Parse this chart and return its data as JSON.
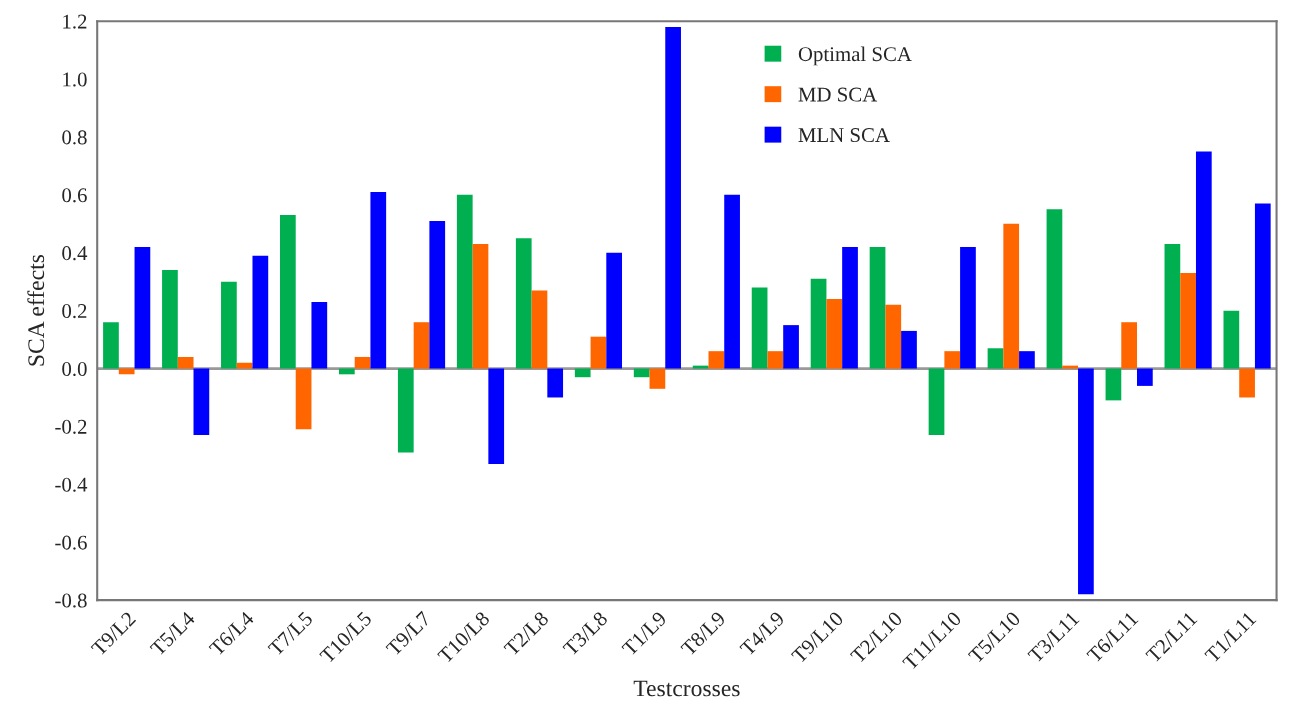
{
  "chart_data": {
    "type": "bar",
    "xlabel": "Testcrosses",
    "ylabel": "SCA effects",
    "categories": [
      "T9/L2",
      "T5/L4",
      "T6/L4",
      "T7/L5",
      "T10/L5",
      "T9/L7",
      "T10/L8",
      "T2/L8",
      "T3/L8",
      "T1/L9",
      "T8/L9",
      "T4/L9",
      "T9/L10",
      "T2/L10",
      "T11/L10",
      "T5/L10",
      "T3/L11",
      "T6/L11",
      "T2/L11",
      "T1/L11"
    ],
    "series": [
      {
        "name": "Optimal SCA",
        "color": "#00b050",
        "values": [
          0.16,
          0.34,
          0.3,
          0.53,
          -0.02,
          -0.29,
          0.6,
          0.45,
          -0.03,
          -0.03,
          0.01,
          0.28,
          0.31,
          0.42,
          -0.23,
          0.07,
          0.55,
          -0.11,
          0.43,
          0.2
        ]
      },
      {
        "name": "MD SCA",
        "color": "#ff6600",
        "values": [
          -0.02,
          0.04,
          0.02,
          -0.21,
          0.04,
          0.16,
          0.43,
          0.27,
          0.11,
          -0.07,
          0.06,
          0.06,
          0.24,
          0.22,
          0.06,
          0.5,
          0.01,
          0.16,
          0.33,
          -0.1
        ]
      },
      {
        "name": "MLN SCA",
        "color": "#0000ff",
        "values": [
          0.42,
          -0.23,
          0.39,
          0.23,
          0.61,
          0.51,
          -0.33,
          -0.1,
          0.4,
          1.18,
          0.6,
          0.15,
          0.42,
          0.13,
          0.42,
          0.06,
          -0.78,
          -0.06,
          0.75,
          0.57
        ]
      }
    ],
    "ylim": [
      -0.8,
      1.2
    ],
    "yticks": [
      -0.8,
      -0.6,
      -0.4,
      -0.2,
      {
        "value": 0,
        "label": "0.0"
      },
      0.2,
      0.4,
      0.6,
      0.8,
      {
        "value": 1,
        "label": "1.0"
      },
      1.2
    ],
    "ref_lines": [
      {
        "axis": "y",
        "value": 0,
        "color": "#999999"
      }
    ],
    "legend": "top"
  }
}
